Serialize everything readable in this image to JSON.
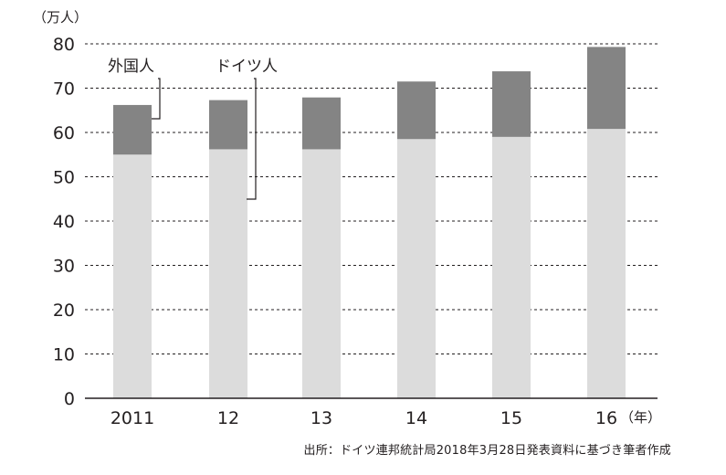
{
  "chart_data": {
    "type": "bar",
    "stacked": true,
    "unit_label": "（万人）",
    "categories": [
      "2011",
      "12",
      "13",
      "14",
      "15",
      "16"
    ],
    "x_suffix": "（年）",
    "series": [
      {
        "name": "ドイツ人",
        "values": [
          55,
          56.2,
          56.2,
          58.5,
          59,
          60.8
        ],
        "color": "#dcdcdc"
      },
      {
        "name": "外国人",
        "values": [
          11.2,
          11.1,
          11.7,
          13,
          14.8,
          18.5
        ],
        "color": "#848484"
      }
    ],
    "ylim": [
      0,
      80
    ],
    "yticks": [
      0,
      10,
      20,
      30,
      40,
      50,
      60,
      70,
      80
    ],
    "grid": true,
    "grid_style": "dashed",
    "xlabel": "",
    "ylabel": ""
  },
  "source": "出所：ドイツ連邦統計局2018年3月28日発表資料に基づき筆者作成"
}
